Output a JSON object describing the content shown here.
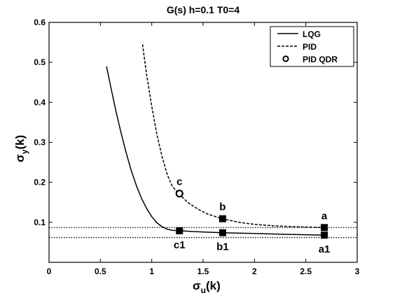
{
  "chart_data": {
    "type": "line",
    "title": "G(s)   h=0.1   T0=4",
    "xlabel": {
      "main": "σ",
      "sub": "u",
      "tail": "(k)"
    },
    "ylabel": {
      "main": "σ",
      "sub": "y",
      "tail": "(k)"
    },
    "xlim": [
      0,
      3
    ],
    "ylim": [
      0,
      0.6
    ],
    "xticks": [
      0,
      0.5,
      1,
      1.5,
      2,
      2.5,
      3
    ],
    "yticks": [
      0.1,
      0.2,
      0.3,
      0.4,
      0.5,
      0.6
    ],
    "xtick_labels": [
      "0",
      "0.5",
      "1",
      "1.5",
      "2",
      "2.5",
      "3"
    ],
    "ytick_labels": [
      "0.1",
      "0.2",
      "0.3",
      "0.4",
      "0.5",
      "0.6"
    ],
    "grid": false,
    "legend_position": "top-right",
    "series": [
      {
        "name": "LQG",
        "style": "solid",
        "x": [
          0.56,
          0.6,
          0.65,
          0.7,
          0.75,
          0.8,
          0.85,
          0.9,
          0.95,
          1.0,
          1.05,
          1.1,
          1.15,
          1.2,
          1.27,
          1.4,
          1.69,
          2.0,
          2.3,
          2.68
        ],
        "y": [
          0.49,
          0.44,
          0.38,
          0.325,
          0.275,
          0.23,
          0.192,
          0.16,
          0.135,
          0.114,
          0.099,
          0.089,
          0.083,
          0.08,
          0.079,
          0.077,
          0.074,
          0.072,
          0.07,
          0.068
        ]
      },
      {
        "name": "PID",
        "style": "dashed",
        "x": [
          0.91,
          0.95,
          1.0,
          1.05,
          1.1,
          1.15,
          1.2,
          1.27,
          1.35,
          1.45,
          1.55,
          1.69,
          1.85,
          2.0,
          2.2,
          2.4,
          2.68
        ],
        "y": [
          0.545,
          0.47,
          0.39,
          0.32,
          0.265,
          0.22,
          0.19,
          0.17,
          0.15,
          0.133,
          0.12,
          0.109,
          0.1,
          0.095,
          0.091,
          0.089,
          0.087
        ]
      }
    ],
    "qdr_point": {
      "name": "PID QDR",
      "x": 1.27,
      "y": 0.172,
      "label": "c"
    },
    "markers": [
      {
        "x": 2.68,
        "y": 0.087,
        "label": "a",
        "label_pos": "above"
      },
      {
        "x": 1.69,
        "y": 0.109,
        "label": "b",
        "label_pos": "above"
      },
      {
        "x": 2.68,
        "y": 0.068,
        "label": "a1",
        "label_pos": "below"
      },
      {
        "x": 1.69,
        "y": 0.074,
        "label": "b1",
        "label_pos": "below"
      },
      {
        "x": 1.27,
        "y": 0.079,
        "label": "c1",
        "label_pos": "below"
      }
    ],
    "hlines": [
      0.087,
      0.062
    ]
  }
}
